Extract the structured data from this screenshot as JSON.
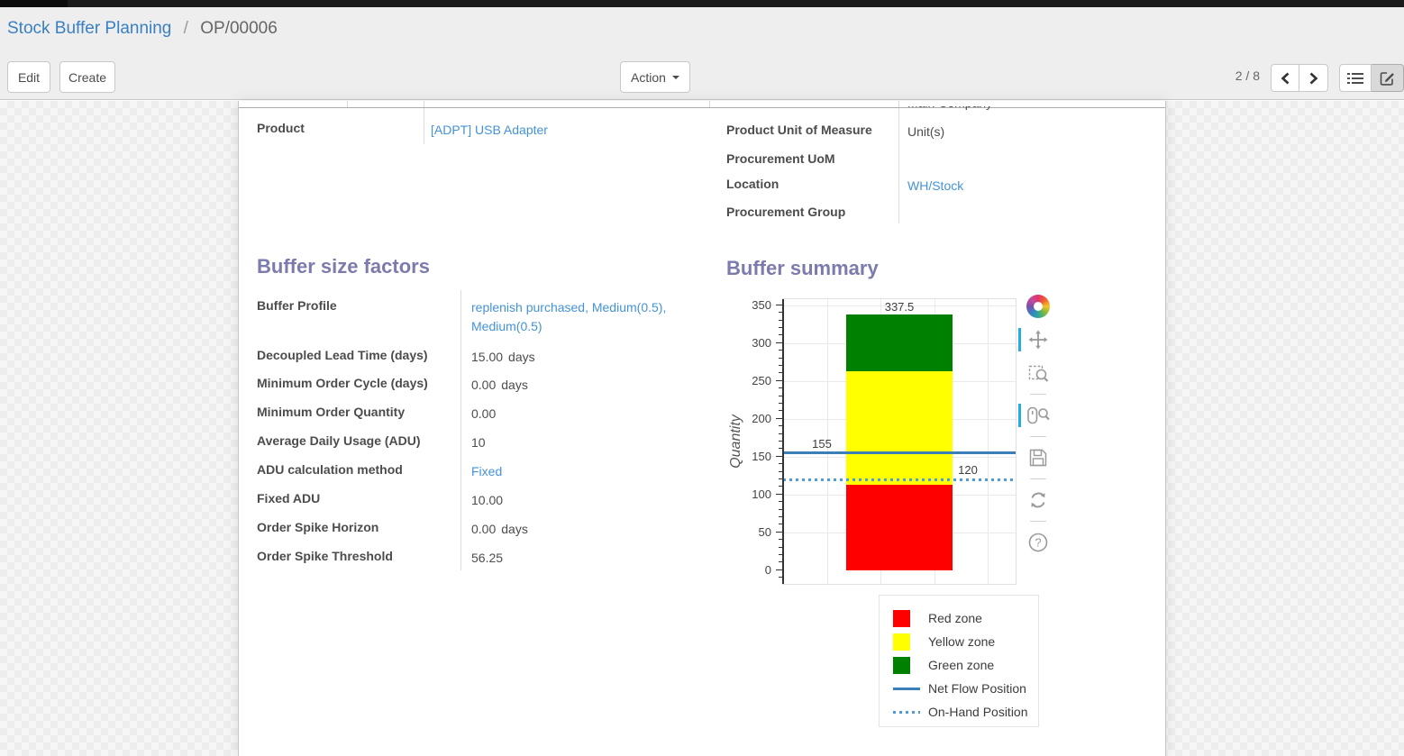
{
  "header": {
    "breadcrumb": {
      "parent": "Stock Buffer Planning",
      "separator": "/",
      "current": "OP/00006"
    },
    "buttons": {
      "edit": "Edit",
      "create": "Create",
      "action": "Action"
    },
    "pager": {
      "text": "2 / 8"
    }
  },
  "form": {
    "left_fields": [
      {
        "label": "Product",
        "value": "[ADPT] USB Adapter",
        "link": true
      }
    ],
    "right_fields": [
      {
        "label": "",
        "value": "Main Company",
        "clipped": true
      },
      {
        "label": "Product Unit of Measure",
        "value": "Unit(s)"
      },
      {
        "label": "Procurement UoM",
        "value": ""
      },
      {
        "label": "Location",
        "value": "WH/Stock",
        "link": true
      },
      {
        "label": "Procurement Group",
        "value": ""
      }
    ],
    "sections": {
      "buffer_size_factors": {
        "title": "Buffer size factors",
        "fields": [
          {
            "label": "Buffer Profile",
            "value": "replenish purchased, Medium(0.5), Medium(0.5)",
            "link": true
          },
          {
            "label": "Decoupled Lead Time (days)",
            "value": "15.00",
            "unit": "days"
          },
          {
            "label": "Minimum Order Cycle (days)",
            "value": "0.00",
            "unit": "days"
          },
          {
            "label": "Minimum Order Quantity",
            "value": "0.00"
          },
          {
            "label": "Average Daily Usage (ADU)",
            "value": "10"
          },
          {
            "label": "ADU calculation method",
            "value": "Fixed",
            "link": true
          },
          {
            "label": "Fixed ADU",
            "value": "10.00"
          },
          {
            "label": "Order Spike Horizon",
            "value": "0.00",
            "unit": "days"
          },
          {
            "label": "Order Spike Threshold",
            "value": "56.25"
          }
        ]
      },
      "buffer_summary": {
        "title": "Buffer summary"
      }
    }
  },
  "chart_data": {
    "type": "bar",
    "title": "Buffer summary",
    "xlabel": "",
    "ylabel": "Quantity",
    "ylim": [
      0,
      350
    ],
    "y_major_tick_step": 50,
    "y_minor_tick_step": 10,
    "grid": true,
    "zones": [
      {
        "name": "Red zone",
        "from": 0,
        "to": 112.5,
        "color": "#ff0000",
        "boundary_label": "112.5"
      },
      {
        "name": "Yellow zone",
        "from": 112.5,
        "to": 262.5,
        "color": "#ffff00",
        "boundary_label": "262.5"
      },
      {
        "name": "Green zone",
        "from": 262.5,
        "to": 337.5,
        "color": "#008000",
        "boundary_label": "337.5"
      }
    ],
    "lines": [
      {
        "name": "Net Flow Position",
        "value": 155,
        "label": "155",
        "style": "solid",
        "color": "#3a7fb8",
        "label_align": "left"
      },
      {
        "name": "On-Hand Position",
        "value": 120,
        "label": "120",
        "style": "dotted",
        "color": "#4f9bd8",
        "label_align": "right"
      }
    ],
    "legend": [
      {
        "label": "Red zone",
        "swatch": "square",
        "color": "#ff0000"
      },
      {
        "label": "Yellow zone",
        "swatch": "square",
        "color": "#ffff00"
      },
      {
        "label": "Green zone",
        "swatch": "square",
        "color": "#008000"
      },
      {
        "label": "Net Flow Position",
        "swatch": "line",
        "color": "#3a7fb8"
      },
      {
        "label": "On-Hand Position",
        "swatch": "dotted",
        "color": "#4f9bd8"
      }
    ],
    "legend_position": "below-right",
    "toolbar_icons": [
      "bokeh-logo-icon",
      "pan-tool-icon",
      "box-zoom-tool-icon",
      "wheel-zoom-tool-icon",
      "save-tool-icon",
      "reset-tool-icon",
      "help-tool-icon"
    ]
  }
}
